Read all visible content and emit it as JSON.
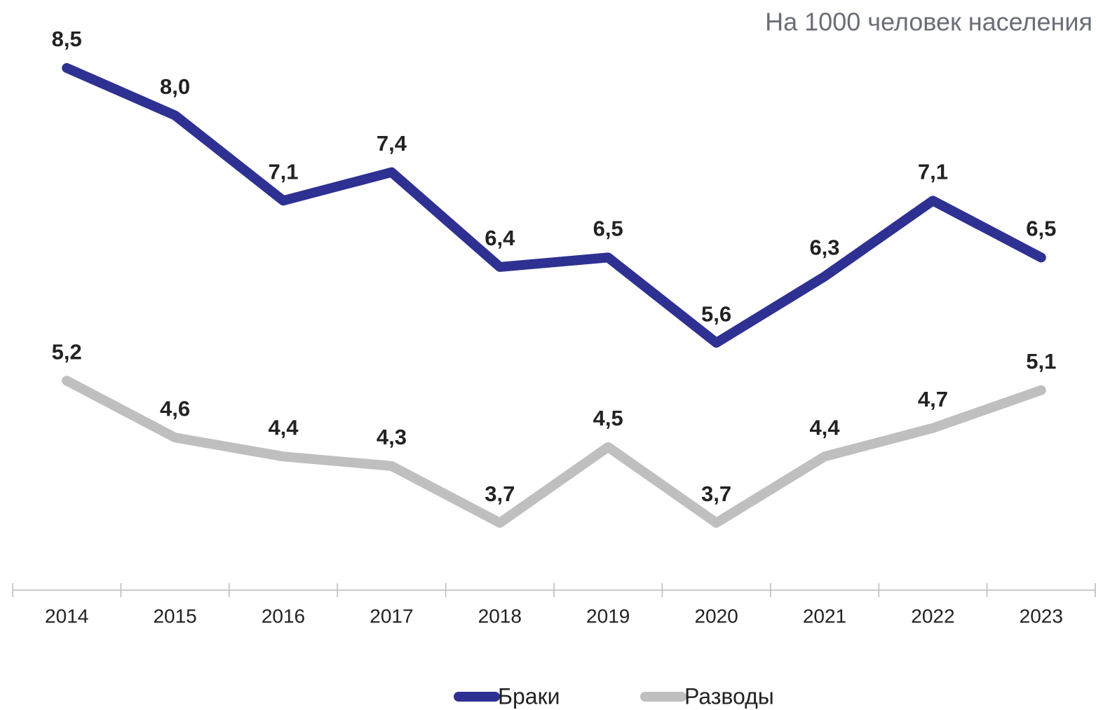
{
  "chart_data": {
    "type": "line",
    "subtitle": "На 1000 человек населения",
    "categories": [
      "2014",
      "2015",
      "2016",
      "2017",
      "2018",
      "2019",
      "2020",
      "2021",
      "2022",
      "2023"
    ],
    "series": [
      {
        "name": "Браки",
        "color": "#2e3192",
        "values": [
          8.5,
          8.0,
          7.1,
          7.4,
          6.4,
          6.5,
          5.6,
          6.3,
          7.1,
          6.5
        ],
        "value_labels": [
          "8,5",
          "8,0",
          "7,1",
          "7,4",
          "6,4",
          "6,5",
          "5,6",
          "6,3",
          "7,1",
          "6,5"
        ]
      },
      {
        "name": "Разводы",
        "color": "#bfbfbf",
        "values": [
          5.2,
          4.6,
          4.4,
          4.3,
          3.7,
          4.5,
          3.7,
          4.4,
          4.7,
          5.1
        ],
        "value_labels": [
          "5,2",
          "4,6",
          "4,4",
          "4,3",
          "3,7",
          "4,5",
          "3,7",
          "4,4",
          "4,7",
          "5,1"
        ]
      }
    ],
    "legend": "bottom"
  }
}
